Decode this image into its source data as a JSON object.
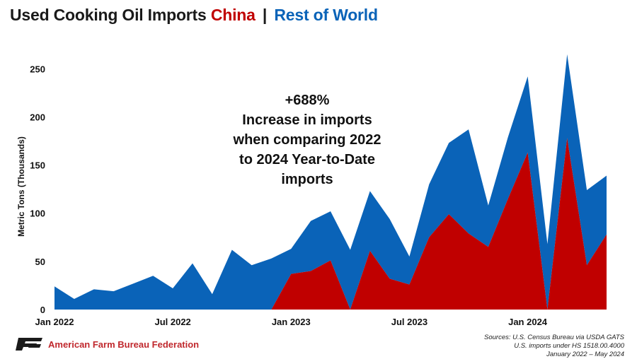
{
  "title": {
    "prefix": "Used Cooking Oil Imports",
    "china": "China",
    "separator": "|",
    "rest": "Rest of World"
  },
  "colors": {
    "china": "#c00000",
    "rest_of_world": "#0a63b8"
  },
  "annotation": [
    "+688%",
    "Increase in imports",
    "when comparing 2022",
    "to 2024 Year-to-Date",
    "imports"
  ],
  "footer": {
    "org": "American Farm Bureau Federation",
    "sources": [
      "Sources: U.S. Census Bureau via USDA GATS",
      "U.S. imports under HS 1518.00.4000",
      "January 2022 – May 2024"
    ]
  },
  "chart_data": {
    "type": "area",
    "stacked": true,
    "ylabel": "Metric Tons (Thousands)",
    "ylim": [
      0,
      270
    ],
    "yticks": [
      0,
      50,
      100,
      150,
      200,
      250
    ],
    "xtick_labels": [
      "Jan 2022",
      "Jul 2022",
      "Jan 2023",
      "Jul 2023",
      "Jan 2024"
    ],
    "x": [
      "2022-01",
      "2022-02",
      "2022-03",
      "2022-04",
      "2022-05",
      "2022-06",
      "2022-07",
      "2022-08",
      "2022-09",
      "2022-10",
      "2022-11",
      "2022-12",
      "2023-01",
      "2023-02",
      "2023-03",
      "2023-04",
      "2023-05",
      "2023-06",
      "2023-07",
      "2023-08",
      "2023-09",
      "2023-10",
      "2023-11",
      "2023-12",
      "2024-01",
      "2024-02",
      "2024-03",
      "2024-04",
      "2024-05"
    ],
    "series": [
      {
        "name": "China",
        "values": [
          0,
          0,
          0,
          0,
          0,
          0,
          0,
          0,
          0,
          0,
          0,
          0,
          37,
          40,
          51,
          0,
          61,
          32,
          26,
          75,
          99,
          79,
          65,
          115,
          163,
          0,
          178,
          46,
          78
        ]
      },
      {
        "name": "Rest of World",
        "values": [
          24,
          11,
          21,
          19,
          27,
          35,
          22,
          48,
          16,
          62,
          46,
          53,
          26,
          52,
          51,
          62,
          62,
          62,
          29,
          55,
          74,
          108,
          43,
          64,
          79,
          68,
          87,
          78,
          61
        ]
      }
    ],
    "grid": false,
    "legend": "title"
  }
}
